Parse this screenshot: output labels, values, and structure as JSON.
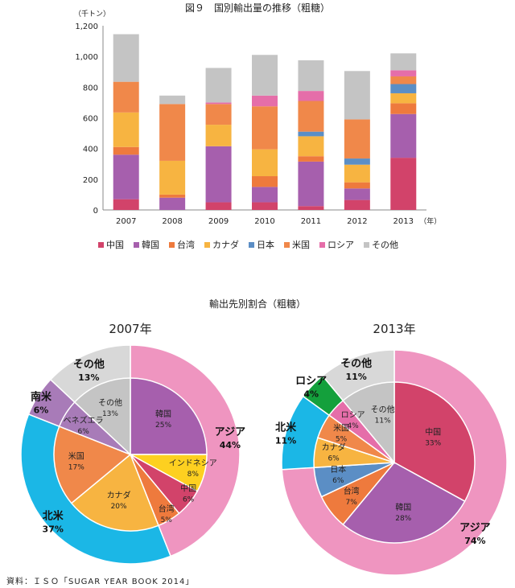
{
  "source": "資料：ＩＳＯ「SUGAR YEAR BOOK 2014」",
  "chart_data": [
    {
      "type": "bar",
      "stacked": true,
      "title": "図９　国別輸出量の推移（粗糖）",
      "ylabel": "（千トン）",
      "xlabel": "（年）",
      "ylim": [
        0,
        1200
      ],
      "yticks": [
        "0",
        "200",
        "400",
        "600",
        "800",
        "1,000",
        "1,200"
      ],
      "categories": [
        "2007",
        "2008",
        "2009",
        "2010",
        "2011",
        "2012",
        "2013"
      ],
      "legend_position": "bottom",
      "grid": false,
      "series": [
        {
          "name": "中国",
          "color": "#d2436a",
          "values": [
            70,
            0,
            50,
            50,
            25,
            65,
            340
          ]
        },
        {
          "name": "韓国",
          "color": "#a65fad",
          "values": [
            290,
            80,
            365,
            100,
            290,
            75,
            285
          ]
        },
        {
          "name": "台湾",
          "color": "#ee7a3d",
          "values": [
            50,
            20,
            0,
            70,
            35,
            40,
            70
          ]
        },
        {
          "name": "カナダ",
          "color": "#f7b441",
          "values": [
            225,
            220,
            140,
            175,
            130,
            115,
            65
          ]
        },
        {
          "name": "日本",
          "color": "#5b8ec5",
          "values": [
            0,
            0,
            0,
            0,
            30,
            40,
            60
          ]
        },
        {
          "name": "米国",
          "color": "#f0884a",
          "values": [
            200,
            370,
            135,
            280,
            200,
            255,
            50
          ]
        },
        {
          "name": "ロシア",
          "color": "#e56ea9",
          "values": [
            0,
            0,
            10,
            70,
            65,
            0,
            40
          ]
        },
        {
          "name": "その他",
          "color": "#c4c4c4",
          "values": [
            310,
            55,
            225,
            265,
            200,
            315,
            110
          ]
        }
      ]
    },
    {
      "type": "pie",
      "title": "2007年",
      "group_title": "輸出先別割合（粗糖）",
      "outer": [
        {
          "label": "アジア",
          "value": 44,
          "pct": "44%",
          "color": "#ef95c0"
        },
        {
          "label": "北米",
          "value": 37,
          "pct": "37%",
          "color": "#1bb7e6"
        },
        {
          "label": "南米",
          "value": 6,
          "pct": "6%",
          "color": "#a87bb8"
        },
        {
          "label": "その他",
          "value": 13,
          "pct": "13%",
          "color": "#d8d8d8"
        }
      ],
      "inner": [
        {
          "label": "韓国",
          "value": 25,
          "pct": "25%",
          "color": "#a65fad"
        },
        {
          "label": "インドネシア",
          "value": 8,
          "pct": "8%",
          "color": "#fdd020"
        },
        {
          "label": "中国",
          "value": 6,
          "pct": "6%",
          "color": "#d2436a"
        },
        {
          "label": "台湾",
          "value": 5,
          "pct": "5%",
          "color": "#ee7a3d"
        },
        {
          "label": "カナダ",
          "value": 20,
          "pct": "20%",
          "color": "#f7b441"
        },
        {
          "label": "米国",
          "value": 17,
          "pct": "17%",
          "color": "#f0884a"
        },
        {
          "label": "ベネズエラ",
          "value": 6,
          "pct": "6%",
          "color": "#a87bb8"
        },
        {
          "label": "その他",
          "value": 13,
          "pct": "13%",
          "color": "#c4c4c4"
        }
      ]
    },
    {
      "type": "pie",
      "title": "2013年",
      "outer": [
        {
          "label": "アジア",
          "value": 74,
          "pct": "74%",
          "color": "#ef95c0"
        },
        {
          "label": "北米",
          "value": 11,
          "pct": "11%",
          "color": "#1bb7e6"
        },
        {
          "label": "ロシア",
          "value": 4,
          "pct": "4%",
          "color": "#14a03c"
        },
        {
          "label": "その他",
          "value": 11,
          "pct": "11%",
          "color": "#d8d8d8"
        }
      ],
      "inner": [
        {
          "label": "中国",
          "value": 33,
          "pct": "33%",
          "color": "#d2436a"
        },
        {
          "label": "韓国",
          "value": 28,
          "pct": "28%",
          "color": "#a65fad"
        },
        {
          "label": "台湾",
          "value": 7,
          "pct": "7%",
          "color": "#ee7a3d"
        },
        {
          "label": "日本",
          "value": 6,
          "pct": "6%",
          "color": "#5b8ec5"
        },
        {
          "label": "カナダ",
          "value": 6,
          "pct": "6%",
          "color": "#f7b441"
        },
        {
          "label": "米国",
          "value": 5,
          "pct": "5%",
          "color": "#f0884a"
        },
        {
          "label": "ロシア",
          "value": 4,
          "pct": "4%",
          "color": "#e56ea9"
        },
        {
          "label": "その他",
          "value": 11,
          "pct": "11%",
          "color": "#c4c4c4"
        }
      ]
    }
  ]
}
